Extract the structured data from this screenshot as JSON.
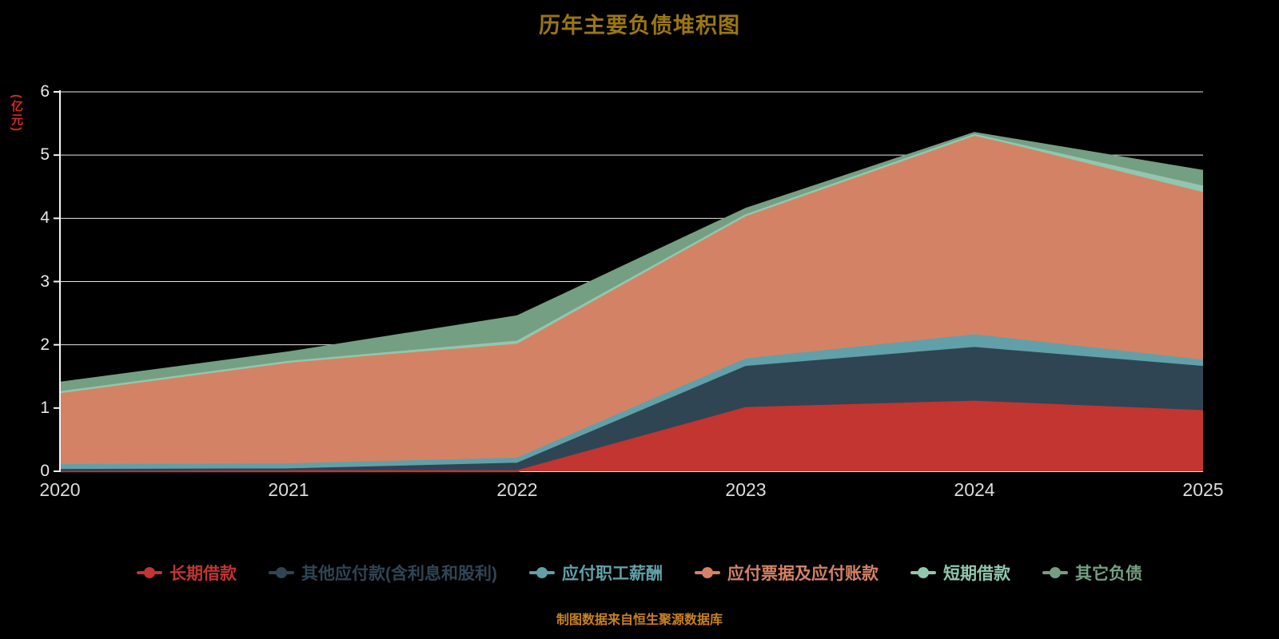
{
  "title": "历年主要负债堆积图",
  "y_axis_unit": "(亿元)",
  "footer": "制图数据来自恒生聚源数据库",
  "colors": {
    "background": "#000000",
    "title": "#9a7712",
    "footer": "#c8821e",
    "y_unit": "#da2a1e",
    "axis_text": "#e8e8e8",
    "gridline": "#ffffff"
  },
  "chart_data": {
    "type": "area",
    "stacked": true,
    "title": "历年主要负债堆积图",
    "ylabel": "(亿元)",
    "ylim": [
      0,
      6
    ],
    "yticks": [
      0,
      1,
      2,
      3,
      4,
      5,
      6
    ],
    "grid": true,
    "legend_position": "bottom",
    "categories": [
      "2020",
      "2021",
      "2022",
      "2023",
      "2024",
      "2025"
    ],
    "series": [
      {
        "name": "长期借款",
        "color": "#c23531",
        "values": [
          0,
          0,
          0,
          1.0,
          1.1,
          0.95
        ]
      },
      {
        "name": "其他应付款(含利息和股利)",
        "color": "#2f4554",
        "values": [
          0.02,
          0.03,
          0.12,
          0.65,
          0.85,
          0.7
        ]
      },
      {
        "name": "应付职工薪酬",
        "color": "#61a0a8",
        "values": [
          0.08,
          0.08,
          0.08,
          0.12,
          0.2,
          0.1
        ]
      },
      {
        "name": "应付票据及应付账款",
        "color": "#d48265",
        "values": [
          1.12,
          1.6,
          1.8,
          2.25,
          3.15,
          2.65
        ]
      },
      {
        "name": "短期借款",
        "color": "#91c7ae",
        "values": [
          0.03,
          0.02,
          0.05,
          0.03,
          0.02,
          0.1
        ]
      },
      {
        "name": "其它负债",
        "color": "#749f83",
        "values": [
          0.15,
          0.15,
          0.4,
          0.1,
          0.03,
          0.25
        ]
      }
    ]
  }
}
